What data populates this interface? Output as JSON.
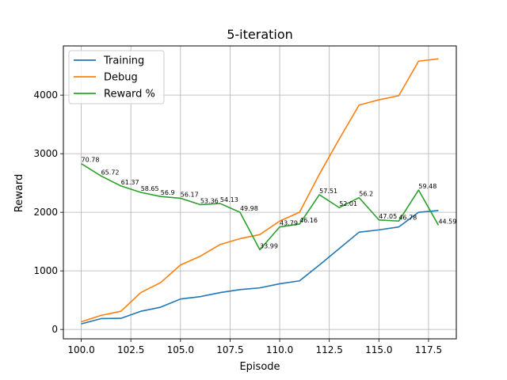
{
  "chart_data": {
    "type": "line",
    "title": "5-iteration",
    "xlabel": "Episode",
    "ylabel": "Reward",
    "xlim": [
      99.1,
      118.9
    ],
    "ylim": [
      -160,
      4840
    ],
    "grid": true,
    "legend_position": "top-left",
    "x_ticks": [
      100.0,
      102.5,
      105.0,
      107.5,
      110.0,
      112.5,
      115.0,
      117.5
    ],
    "x_tick_labels": [
      "100.0",
      "102.5",
      "105.0",
      "107.5",
      "110.0",
      "112.5",
      "115.0",
      "117.5"
    ],
    "y_ticks": [
      0,
      1000,
      2000,
      3000,
      4000
    ],
    "y_tick_labels": [
      "0",
      "1000",
      "2000",
      "3000",
      "4000"
    ],
    "x": [
      100,
      101,
      102,
      103,
      104,
      105,
      106,
      107,
      108,
      109,
      110,
      111,
      112,
      113,
      114,
      115,
      116,
      117,
      118
    ],
    "series": [
      {
        "name": "Training",
        "color": "#1f77b4",
        "values": [
          95,
          185,
          190,
          310,
          380,
          520,
          560,
          630,
          680,
          710,
          780,
          830,
          1100,
          1380,
          1660,
          1700,
          1750,
          2000,
          2030
        ]
      },
      {
        "name": "Debug",
        "color": "#ff7f0e",
        "values": [
          130,
          240,
          310,
          630,
          800,
          1100,
          1250,
          1450,
          1550,
          1620,
          1850,
          2000,
          2650,
          3250,
          3830,
          3920,
          3990,
          4580,
          4620
        ]
      },
      {
        "name": "Reward %",
        "color": "#2ca02c",
        "values": [
          2830,
          2620,
          2450,
          2340,
          2270,
          2240,
          2130,
          2150,
          2000,
          1360,
          1750,
          1800,
          2300,
          2080,
          2250,
          1870,
          1850,
          2380,
          1780
        ],
        "point_labels": [
          "70.78",
          "65.72",
          "61.37",
          "58.65",
          "56.9",
          "56.17",
          "53.36",
          "54.13",
          "49.98",
          "33.99",
          "43.79",
          "46.16",
          "57.51",
          "52.01",
          "56.2",
          "47.05",
          "46.78",
          "59.48",
          "44.59"
        ]
      }
    ]
  }
}
